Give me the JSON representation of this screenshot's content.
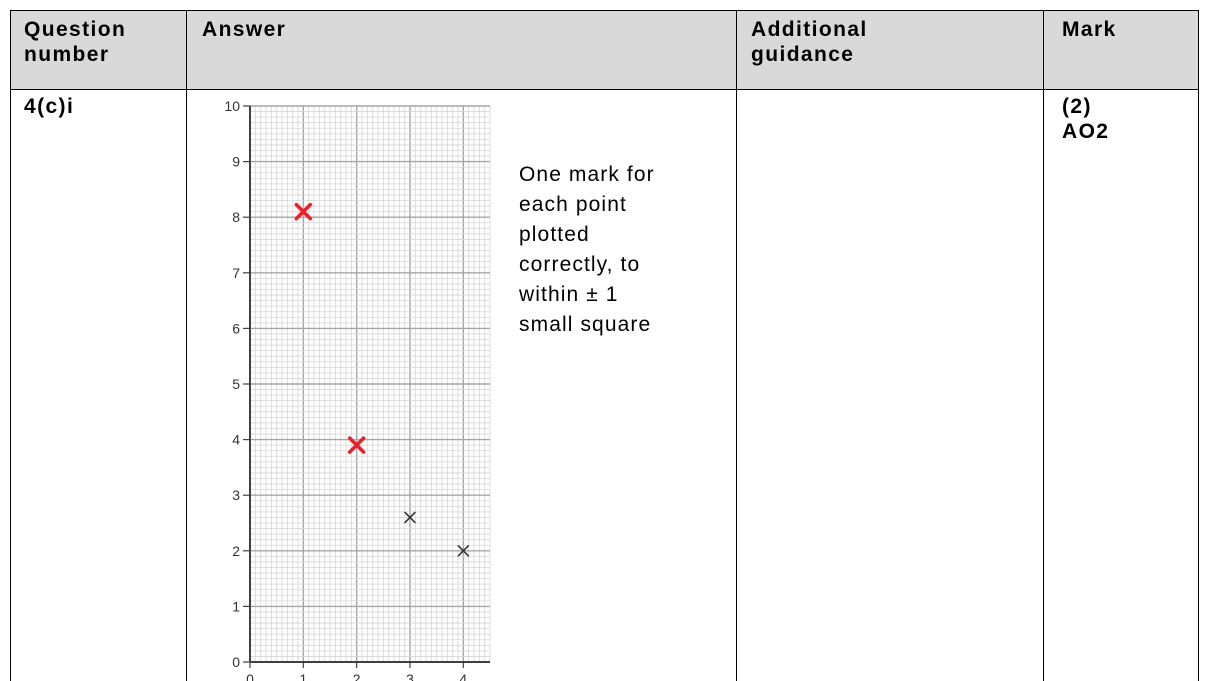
{
  "headers": {
    "question_number": [
      "Question",
      "number"
    ],
    "answer": "Answer",
    "additional_guidance": [
      "Additional",
      "guidance"
    ],
    "mark": "Mark"
  },
  "row": {
    "question_number": "4(c)i",
    "guidance_lines": [
      "One mark for",
      "each point",
      "plotted",
      "correctly, to",
      "within ± 1",
      "small square"
    ],
    "mark_lines": [
      "(2)",
      "AO2"
    ]
  },
  "chart_data": {
    "type": "scatter",
    "title": "",
    "xlabel": "",
    "ylabel": "",
    "xlim": [
      0,
      4.5
    ],
    "ylim": [
      0,
      10
    ],
    "grid": true,
    "x_ticks": [
      "0",
      "1",
      "2",
      "3",
      "4"
    ],
    "y_ticks": [
      "0",
      "1",
      "2",
      "3",
      "4",
      "5",
      "6",
      "7",
      "8",
      "9",
      "10"
    ],
    "series": [
      {
        "color": "#e8202a",
        "points": [
          {
            "x": 1,
            "y": 8.1
          },
          {
            "x": 2,
            "y": 3.9
          }
        ]
      },
      {
        "color": "#333333",
        "points": [
          {
            "x": 3,
            "y": 2.6
          },
          {
            "x": 4,
            "y": 2.0
          }
        ]
      }
    ]
  }
}
